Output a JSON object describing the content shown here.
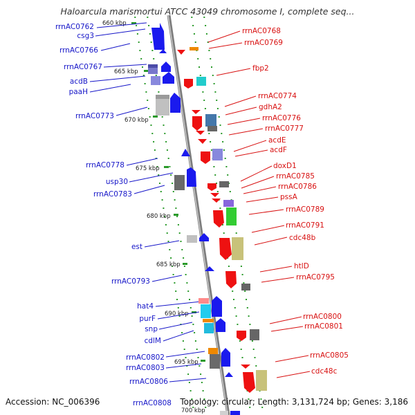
{
  "title": "Haloarcula marismortui ATCC 43049 chromosome I, complete seq...",
  "footer": {
    "accession": "Accession: NC_006396",
    "info": "Topology: circular; Length: 3,131,724 bp; Genes: 3,186"
  },
  "colors": {
    "left_label": "#1515c8",
    "right_label": "#d81010",
    "tick": "#2a9a2a",
    "backbone": "#8a8a8a"
  },
  "scale_labels": [
    "660 kbp",
    "665 kbp",
    "670 kbp",
    "675 kbp",
    "680 kbp",
    "685 kbp",
    "690 kbp",
    "695 kbp",
    "700 kbp"
  ],
  "left_labels": [
    "rrnAC0762",
    "csg3",
    "rrnAC0766",
    "rrnAC0767",
    "acdB",
    "paaH",
    "rrnAC0773",
    "rrnAC0778",
    "usp30",
    "rrnAC0783",
    "est",
    "rrnAC0793",
    "hat4",
    "purF",
    "snp",
    "cdlM",
    "rrnAC0802",
    "rrnAC0803",
    "rrnAC0806",
    "rrnAC0808"
  ],
  "right_labels": [
    "rrnAC0768",
    "rrnAC0769",
    "fbp2",
    "rrnAC0774",
    "gdhA2",
    "rrnAC0776",
    "rrnAC0777",
    "acdE",
    "acdF",
    "doxD1",
    "rrnAC0785",
    "rrnAC0786",
    "pssA",
    "rrnAC0789",
    "rrnAC0791",
    "cdc48b",
    "htlD",
    "rrnAC0795",
    "rrnAC0800",
    "rrnAC0801",
    "rrnAC0805",
    "cdc48c"
  ]
}
